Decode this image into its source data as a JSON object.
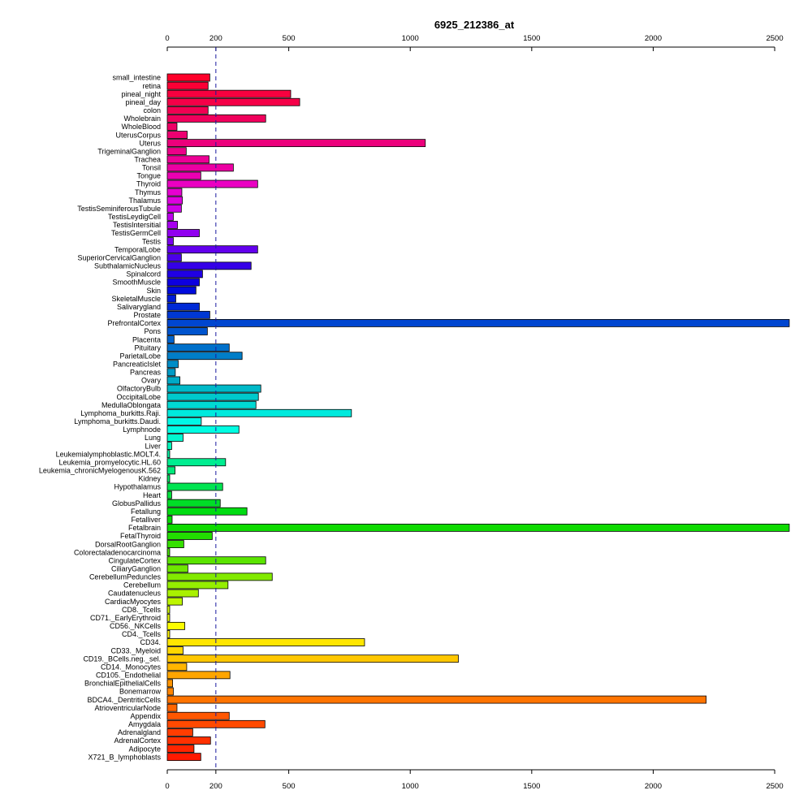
{
  "chart_data": {
    "type": "bar",
    "orientation": "horizontal",
    "title": "6925_212386_at",
    "xlabel": "",
    "ylabel": "",
    "xlim": [
      0,
      2560
    ],
    "xticks": [
      0,
      200,
      500,
      1000,
      1500,
      2000,
      2500
    ],
    "reference_line": 200,
    "grid": false,
    "legend": "none",
    "categories": [
      "small_intestine",
      "retina",
      "pineal_night",
      "pineal_day",
      "colon",
      "Wholebrain",
      "WholeBlood",
      "UterusCorpus",
      "Uterus",
      "TrigeminalGanglion",
      "Trachea",
      "Tonsil",
      "Tongue",
      "Thyroid",
      "Thymus",
      "Thalamus",
      "TestisSeminiferousTubule",
      "TestisLeydigCell",
      "TestisIntersitial",
      "TestisGermCell",
      "Testis",
      "TemporalLobe",
      "SuperiorCervicalGanglion",
      "SubthalamicNucleus",
      "Spinalcord",
      "SmoothMuscle",
      "Skin",
      "SkeletalMuscle",
      "Salivarygland",
      "Prostate",
      "PrefrontalCortex",
      "Pons",
      "Placenta",
      "Pituitary",
      "ParietalLobe",
      "PancreaticIslet",
      "Pancreas",
      "Ovary",
      "OlfactoryBulb",
      "OccipitalLobe",
      "MedullaOblongata",
      "Lymphoma_burkitts.Raji.",
      "Lymphoma_burkitts.Daudi.",
      "Lymphnode",
      "Lung",
      "Liver",
      "Leukemialymphoblastic.MOLT.4.",
      "Leukemia_promyelocytic.HL.60",
      "Leukemia_chronicMyelogenousK.562",
      "Kidney",
      "Hypothalamus",
      "Heart",
      "GlobusPallidus",
      "Fetallung",
      "Fetalliver",
      "Fetalbrain",
      "FetalThyroid",
      "DorsalRootGanglion",
      "Colorectaladenocarcinoma",
      "CingulateCortex",
      "CiliaryGanglion",
      "CerebellumPeduncles",
      "Cerebellum",
      "Caudatenucleus",
      "CardiacMyocytes",
      "CD8._Tcells",
      "CD71._EarlyErythroid",
      "CD56._NKCells",
      "CD4._Tcells",
      "CD34.",
      "CD33._Myeloid",
      "CD19._BCells.neg._sel.",
      "CD14._Monocytes",
      "CD105._Endothelial",
      "BronchialEpithelialCells",
      "Bonemarrow",
      "BDCA4._DentriticCells",
      "AtrioventricularNode",
      "Appendix",
      "Amygdala",
      "Adrenalgland",
      "AdrenalCortex",
      "Adipocyte",
      "X721_B_lymphoblasts"
    ],
    "values": [
      175,
      168,
      508,
      545,
      168,
      405,
      40,
      82,
      1062,
      78,
      172,
      272,
      138,
      372,
      60,
      62,
      58,
      25,
      42,
      132,
      25,
      372,
      58,
      345,
      145,
      132,
      118,
      35,
      132,
      175,
      2560,
      165,
      28,
      255,
      308,
      45,
      33,
      52,
      385,
      375,
      365,
      758,
      140,
      295,
      65,
      18,
      10,
      240,
      32,
      10,
      228,
      18,
      218,
      328,
      20,
      2560,
      185,
      68,
      10,
      405,
      85,
      432,
      250,
      128,
      62,
      10,
      10,
      72,
      10,
      812,
      65,
      1198,
      80,
      258,
      22,
      25,
      2218,
      40,
      255,
      402,
      105,
      178,
      110,
      138
    ],
    "colors": [
      "#ff002a",
      "#fb0035",
      "#f8003f",
      "#f50048",
      "#f20052",
      "#f0005c",
      "#ee0066",
      "#ed0071",
      "#ec007c",
      "#ec0088",
      "#ec0095",
      "#ec00a3",
      "#eb00b2",
      "#ea00c2",
      "#e600d1",
      "#de00e0",
      "#cf00e8",
      "#bc00ec",
      "#a700ef",
      "#9100f0",
      "#7a00ef",
      "#6300ed",
      "#4c00ea",
      "#3500e7",
      "#2000e4",
      "#0d00e0",
      "#000bdd",
      "#001bd9",
      "#002ad6",
      "#0038d3",
      "#0046d0",
      "#0054ce",
      "#0062cc",
      "#0070ca",
      "#007ec8",
      "#008dc7",
      "#009bc6",
      "#00aac6",
      "#00b9c8",
      "#00c9cc",
      "#00d9d3",
      "#00eadd",
      "#00f8e6",
      "#00fde2",
      "#00f9cf",
      "#00f5ba",
      "#00f1a5",
      "#00ed90",
      "#00ea7b",
      "#00e766",
      "#00e451",
      "#00e13c",
      "#00de27",
      "#00dc12",
      "#00da00",
      "#0edb00",
      "#22dd00",
      "#35df00",
      "#48e100",
      "#5be400",
      "#6ee700",
      "#82ea00",
      "#95ee00",
      "#a9f100",
      "#bdf500",
      "#d2f900",
      "#e7fc00",
      "#fbfd00",
      "#fff300",
      "#ffe600",
      "#ffd700",
      "#ffc700",
      "#ffb600",
      "#ffa500",
      "#ff9400",
      "#ff8400",
      "#ff7400",
      "#ff6500",
      "#ff5700",
      "#ff4a00",
      "#ff3d00",
      "#ff3100",
      "#ff2500",
      "#ff1a00"
    ]
  }
}
